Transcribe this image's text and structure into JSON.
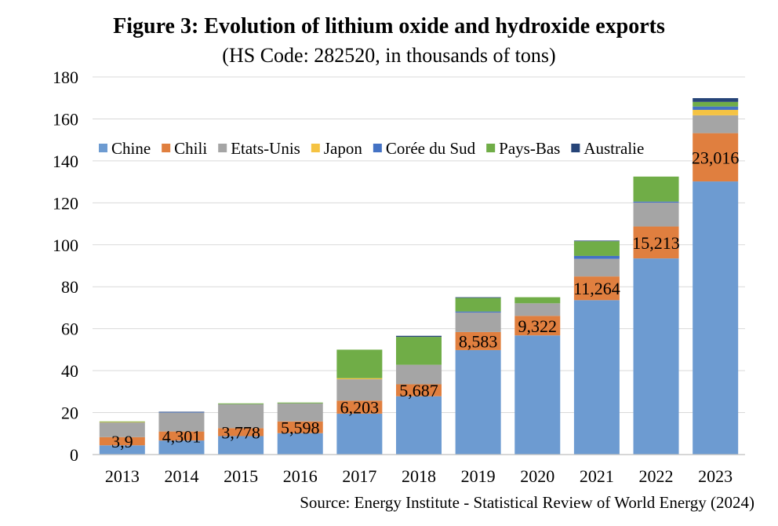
{
  "chart_data": {
    "type": "bar",
    "stacked": true,
    "title": "Figure 3: Evolution of lithium oxide and hydroxide exports",
    "subtitle": "(HS Code: 282520, in thousands of tons)",
    "source": "Source: Energy Institute - Statistical Review of World Energy (2024)",
    "xlabel": "",
    "ylabel": "",
    "ylim": [
      0,
      180
    ],
    "yticks": [
      0,
      20,
      40,
      60,
      80,
      100,
      120,
      140,
      160,
      180
    ],
    "grid": true,
    "legend_position": "top-inside",
    "categories": [
      "2013",
      "2014",
      "2015",
      "2016",
      "2017",
      "2018",
      "2019",
      "2020",
      "2021",
      "2022",
      "2023"
    ],
    "series": [
      {
        "name": "Chine",
        "color": "#6d9bd1",
        "values": [
          4.4,
          6.7,
          8.8,
          10.2,
          19.5,
          27.8,
          49.8,
          56.8,
          73.6,
          93.5,
          130.2
        ]
      },
      {
        "name": "Chili",
        "color": "#e07f3f",
        "values": [
          3.9,
          4.3,
          3.8,
          5.6,
          6.2,
          5.7,
          8.6,
          9.3,
          11.3,
          15.2,
          23.0
        ]
      },
      {
        "name": "Etats-Unis",
        "color": "#a5a5a5",
        "values": [
          7.0,
          9.0,
          11.4,
          8.6,
          10.2,
          9.3,
          9.3,
          6.0,
          8.4,
          11.4,
          8.5
        ]
      },
      {
        "name": "Japon",
        "color": "#f5c343",
        "values": [
          0.2,
          0.0,
          0.0,
          0.0,
          0.5,
          0.0,
          0.0,
          0.0,
          0.0,
          0.0,
          2.6
        ]
      },
      {
        "name": "Corée du Sud",
        "color": "#4472c4",
        "values": [
          0.0,
          0.2,
          0.0,
          0.0,
          0.0,
          0.0,
          0.5,
          0.0,
          1.4,
          0.5,
          1.6
        ]
      },
      {
        "name": "Pays-Bas",
        "color": "#70ad47",
        "values": [
          0.3,
          0.0,
          0.4,
          0.4,
          13.6,
          13.3,
          6.5,
          2.9,
          7.0,
          11.9,
          2.2
        ]
      },
      {
        "name": "Australie",
        "color": "#264478",
        "values": [
          0.0,
          0.2,
          0.0,
          0.0,
          0.0,
          0.5,
          0.3,
          0.0,
          0.3,
          0.0,
          1.8
        ]
      }
    ],
    "data_labels": {
      "series": "Chili",
      "labels": [
        "3,9",
        "4,301",
        "3,778",
        "5,598",
        "6,203",
        "5,687",
        "8,583",
        "9,322",
        "11,264",
        "15,213",
        "23,016"
      ]
    }
  }
}
